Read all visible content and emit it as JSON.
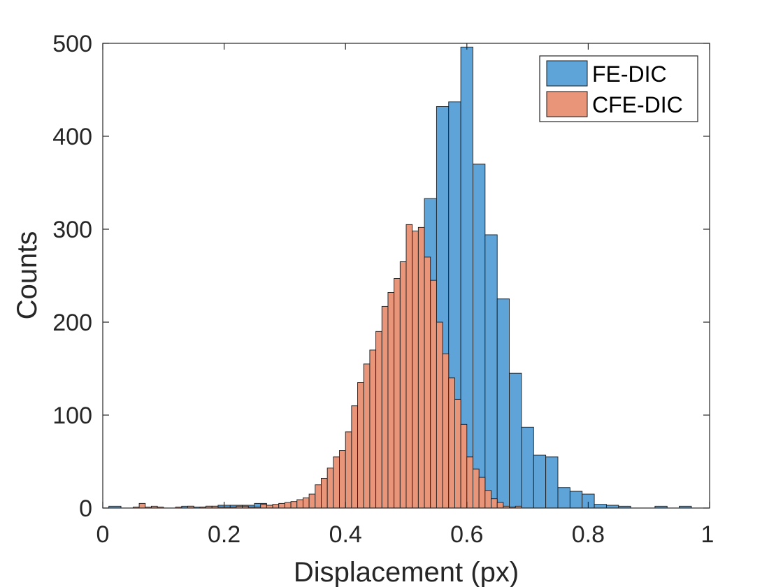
{
  "chart_data": {
    "type": "histogram",
    "title": "",
    "xlabel": "Displacement (px)",
    "ylabel": "Counts",
    "xlim": [
      0,
      1
    ],
    "ylim": [
      0,
      500
    ],
    "xticks": [
      "0",
      "0.2",
      "0.4",
      "0.6",
      "0.8",
      "1"
    ],
    "yticks": [
      "0",
      "100",
      "200",
      "300",
      "400",
      "500"
    ],
    "legend_position": "top-right",
    "series": [
      {
        "name": "FE-DIC",
        "color": "#5fa4d8",
        "bin_width": 0.02,
        "bin_start": 0.01,
        "counts": [
          2,
          0,
          0,
          0,
          0,
          0,
          2,
          1,
          2,
          3,
          3,
          3,
          5,
          3,
          2,
          2,
          5,
          10,
          15,
          25,
          42,
          50,
          63,
          130,
          200,
          253,
          333,
          432,
          437,
          496,
          370,
          294,
          225,
          145,
          87,
          57,
          55,
          22,
          18,
          15,
          4,
          3,
          2,
          0,
          0,
          2,
          0,
          2,
          0,
          0
        ]
      },
      {
        "name": "CFE-DIC",
        "color": "#e8957a",
        "bin_width": 0.01,
        "bin_start": 0.05,
        "counts": [
          1,
          5,
          1,
          2,
          1,
          0,
          0,
          1,
          0,
          2,
          0,
          1,
          2,
          2,
          1,
          1,
          1,
          2,
          2,
          1,
          1,
          4,
          3,
          4,
          5,
          6,
          7,
          9,
          11,
          15,
          25,
          32,
          43,
          55,
          62,
          82,
          110,
          135,
          155,
          170,
          190,
          217,
          232,
          247,
          265,
          305,
          298,
          302,
          270,
          245,
          200,
          166,
          140,
          117,
          90,
          55,
          42,
          33,
          19,
          10,
          6,
          2,
          1,
          2
        ]
      }
    ]
  }
}
